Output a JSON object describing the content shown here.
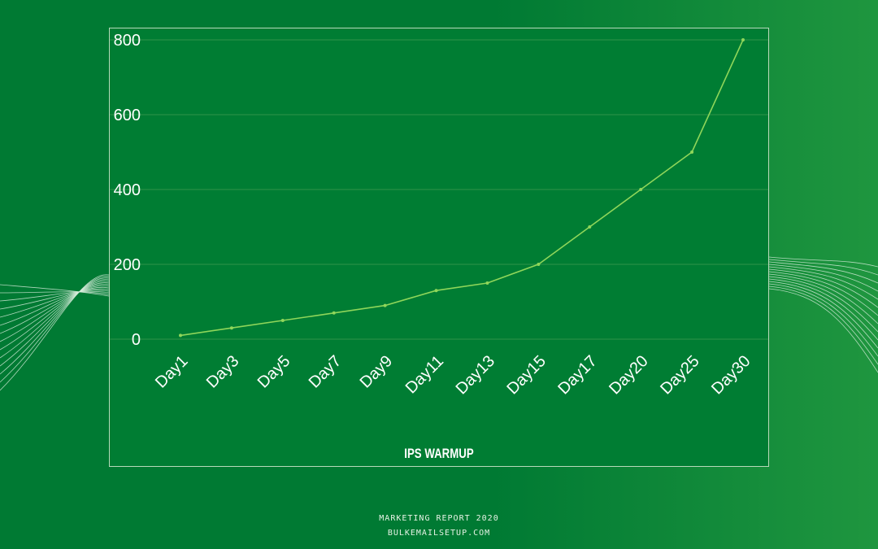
{
  "chart_data": {
    "type": "line",
    "title": "IPS WARMUP",
    "categories": [
      "Day1",
      "Day3",
      "Day5",
      "Day7",
      "Day9",
      "Day11",
      "Day13",
      "Day15",
      "Day17",
      "Day20",
      "Day25",
      "Day30"
    ],
    "series": [
      {
        "values": [
          10,
          30,
          50,
          70,
          90,
          130,
          150,
          200,
          300,
          400,
          500,
          800
        ],
        "color": "#8fd65a"
      }
    ],
    "yticks": [
      0,
      200,
      400,
      600,
      800
    ],
    "ylim": [
      0,
      800
    ],
    "grid": true,
    "legend": "none",
    "colors": {
      "background": "#007a33",
      "plot_background": "#007d33",
      "grid": "#2f9448",
      "text": "#ffffff",
      "frame": "#b7d9ba"
    }
  },
  "footer": {
    "line1": "MARKETING REPORT 2020",
    "line2": "BULKEMAILSETUP.COM"
  }
}
